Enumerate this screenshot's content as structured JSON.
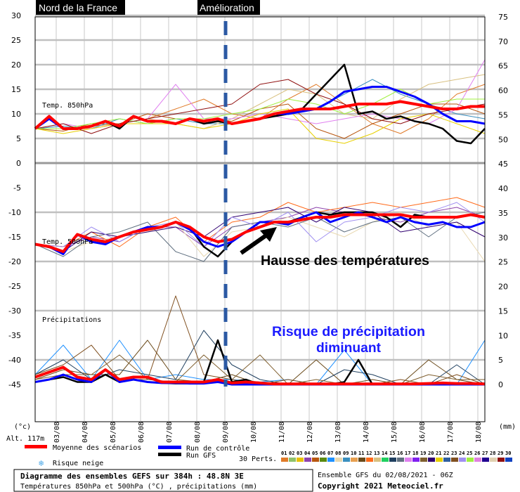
{
  "chart_data": {
    "type": "line",
    "title_tags": {
      "region": "Nord de la France",
      "event": "Amélioration"
    },
    "time_start": "02/08/2021 06Z",
    "time_step_hours": 12,
    "member_step_hours": 24,
    "x_tick_labels": [
      "03/08",
      "04/08",
      "05/08",
      "06/08",
      "07/08",
      "08/08",
      "09/08",
      "10/08",
      "11/08",
      "12/08",
      "13/08",
      "14/08",
      "15/08",
      "16/08",
      "17/08",
      "18/08"
    ],
    "left_axis": {
      "unit": "(°c)",
      "ticks": [
        30,
        25,
        20,
        15,
        10,
        5,
        0,
        -5,
        -10,
        -15,
        -20,
        -25,
        -30,
        -35,
        -40,
        -45
      ]
    },
    "right_axis": {
      "unit": "(mm)",
      "ticks": [
        75,
        70,
        65,
        60,
        55,
        50,
        45,
        40,
        35,
        30,
        25,
        20,
        15,
        10,
        5,
        0
      ]
    },
    "altitude": "Alt. 117m",
    "panels": [
      {
        "label": "Temp. 850hPa",
        "ylim": [
          0,
          30
        ],
        "mean": [
          7,
          9.5,
          7,
          7,
          7.5,
          8.5,
          7.5,
          9.5,
          8.5,
          8.5,
          8,
          9,
          8.5,
          9,
          8,
          8.5,
          9,
          10,
          10.5,
          11,
          11,
          11,
          11.5,
          12,
          12,
          12,
          12.5,
          12,
          11.5,
          11,
          11,
          11.5,
          11.5
        ],
        "control": [
          7,
          9,
          7,
          7,
          7.5,
          8.5,
          7.5,
          9.5,
          8.5,
          8.5,
          8,
          9,
          8.5,
          9,
          8,
          8.5,
          9,
          10,
          10,
          10.5,
          11,
          12.5,
          14.5,
          15,
          15.5,
          15.5,
          14.5,
          13.5,
          12,
          10,
          8.5,
          8.5,
          8
        ],
        "gfs": [
          7,
          9,
          7,
          7,
          7.5,
          8.5,
          7,
          9.5,
          8.5,
          8.5,
          8,
          9,
          8,
          8.5,
          8,
          8.5,
          9,
          9.5,
          10,
          11,
          14,
          17,
          20,
          10,
          10.5,
          9,
          9.5,
          8.5,
          8,
          7,
          4.5,
          4,
          7
        ],
        "members": [
          [
            7,
            7,
            7.5,
            8,
            9,
            11,
            13,
            10,
            9,
            13,
            16,
            12,
            8,
            6,
            9,
            14,
            16
          ],
          [
            7,
            6.5,
            8,
            8,
            10,
            9,
            9,
            8.5,
            11,
            12,
            7,
            5,
            8,
            10,
            12,
            12,
            10
          ],
          [
            7,
            7.5,
            7,
            9,
            8,
            9,
            8,
            8,
            9,
            10,
            11,
            14,
            17,
            14,
            12,
            10,
            9
          ],
          [
            7,
            7,
            7,
            8,
            9,
            8,
            7,
            9,
            12,
            15,
            14,
            10,
            9,
            13,
            16,
            17,
            18
          ],
          [
            7,
            8,
            7,
            8,
            9,
            16,
            9,
            9,
            10,
            9,
            8,
            9,
            10,
            9,
            8,
            11,
            21
          ],
          [
            7,
            6,
            7,
            8,
            8,
            8,
            7,
            8,
            10,
            11,
            5,
            4,
            6,
            9,
            10,
            8,
            6
          ],
          [
            7,
            7,
            8,
            9,
            8,
            9,
            9,
            10,
            11,
            13,
            12,
            10,
            12,
            15,
            12,
            13,
            13
          ],
          [
            7,
            8,
            6,
            8,
            9,
            10,
            11,
            12,
            16,
            17,
            14,
            12,
            9,
            8,
            10,
            11,
            12
          ]
        ]
      },
      {
        "label": "Temp. 500hPa",
        "ylim": [
          -30,
          0
        ],
        "mean": [
          -16.5,
          -17,
          -18,
          -14.5,
          -15.5,
          -16,
          -15,
          -14,
          -13.5,
          -13,
          -12,
          -13,
          -15,
          -16,
          -15.5,
          -14,
          -13,
          -12,
          -12,
          -11.5,
          -11,
          -11,
          -10.5,
          -10.5,
          -10.5,
          -10.5,
          -10.5,
          -11,
          -11,
          -11,
          -11,
          -10.5,
          -11
        ],
        "control": [
          -16.5,
          -17,
          -18.5,
          -14.5,
          -16,
          -16.5,
          -15,
          -14,
          -13,
          -13,
          -12,
          -13.5,
          -16,
          -17,
          -16,
          -14,
          -12,
          -12,
          -12.5,
          -11,
          -10,
          -12,
          -11,
          -10,
          -11,
          -12,
          -11,
          -12,
          -12.5,
          -12,
          -13,
          -13,
          -12
        ],
        "gfs": [
          -16.5,
          -17,
          -18,
          -14.5,
          -15.5,
          -16,
          -15,
          -14,
          -13.5,
          -13,
          -12,
          -13,
          -17,
          -19,
          -16,
          -14,
          -12,
          -12,
          -12,
          -11,
          -10,
          -10.5,
          -10,
          -10,
          -10,
          -11,
          -13,
          -10.5,
          -11,
          -11,
          -11,
          -10.5,
          -11
        ],
        "members": [
          [
            -16.5,
            -17,
            -15,
            -16,
            -13,
            -13,
            -17,
            -13,
            -12,
            -11,
            -9,
            -10,
            -11,
            -12,
            -10,
            -9,
            -11
          ],
          [
            -16.5,
            -18,
            -16,
            -15,
            -14,
            -12,
            -19,
            -14,
            -13,
            -11,
            -13,
            -15,
            -12,
            -10,
            -13,
            -12,
            -20
          ],
          [
            -16.5,
            -17,
            -14,
            -17,
            -13,
            -11,
            -16,
            -12,
            -11,
            -8,
            -10,
            -9,
            -8,
            -9,
            -8,
            -7,
            -9
          ],
          [
            -16.5,
            -19,
            -15,
            -14,
            -12,
            -18,
            -20,
            -13,
            -12,
            -13,
            -11,
            -14,
            -12,
            -11,
            -15,
            -11,
            -10
          ],
          [
            -16.5,
            -18,
            -14,
            -15,
            -14,
            -13,
            -15,
            -11,
            -10,
            -9,
            -12,
            -9,
            -10,
            -14,
            -13,
            -12,
            -15
          ],
          [
            -16.5,
            -17,
            -13,
            -16,
            -13,
            -12,
            -17,
            -11,
            -13,
            -10,
            -16,
            -12,
            -11,
            -9,
            -10,
            -8,
            -12
          ]
        ]
      },
      {
        "label": "Précipitations",
        "ylim": [
          0,
          15
        ],
        "unit": "mm",
        "mean": [
          1.5,
          2.5,
          3.5,
          1.5,
          1,
          3,
          1,
          1.5,
          1.5,
          0.5,
          0.5,
          0.5,
          0.5,
          1,
          0.3,
          0.5,
          0.3,
          0.1,
          0.1,
          0.1,
          0.1,
          0.1,
          0.1,
          0.1,
          0.1,
          0.1,
          0.1,
          0.1,
          0.2,
          0.3,
          0.2,
          0.2,
          0.1
        ],
        "control": [
          0.5,
          1,
          2,
          1,
          0.5,
          3,
          0.5,
          1,
          0.5,
          0.3,
          0.3,
          0.2,
          0.2,
          0.5,
          0,
          0,
          0,
          0,
          0,
          0,
          0,
          0,
          0,
          0,
          0,
          0,
          0,
          0,
          0,
          0,
          0,
          0,
          0
        ],
        "gfs": [
          0.5,
          1,
          1.5,
          0.5,
          0.5,
          2,
          0.5,
          1,
          0.5,
          0.3,
          0.2,
          0.2,
          0.5,
          9,
          0.5,
          1,
          0,
          0,
          0,
          0,
          0,
          0,
          0.5,
          5,
          0,
          0,
          0,
          0,
          0,
          0,
          0,
          0,
          0
        ],
        "members": [
          [
            2,
            8,
            1,
            9,
            1,
            2,
            1,
            1,
            0.5,
            1,
            0,
            7,
            0,
            0,
            0,
            0,
            9
          ],
          [
            1,
            3,
            2,
            2,
            9,
            1,
            0.5,
            2,
            0,
            0,
            5,
            0,
            1,
            0,
            5,
            1,
            0
          ],
          [
            2,
            5,
            1,
            3,
            2,
            1,
            11,
            4,
            1,
            0,
            0,
            3,
            2,
            0,
            0,
            4,
            0
          ],
          [
            1,
            2,
            2,
            6,
            1,
            0.5,
            6,
            1,
            6,
            0,
            1,
            0,
            0,
            0,
            2,
            1,
            1
          ],
          [
            2,
            4,
            8,
            1,
            1,
            18,
            2,
            1,
            0,
            1,
            0,
            0,
            0,
            1,
            0,
            2,
            0
          ]
        ]
      }
    ],
    "series_colors": {
      "mean": "#ff0000",
      "control": "#0000ff",
      "gfs": "#000000",
      "marker_line": "#2b59a3",
      "annotation_blue": "#1a1aff"
    },
    "annotations": {
      "temperature": "Hausse des températures",
      "precip_line1": "Risque de précipitation",
      "precip_line2": "diminuant"
    }
  },
  "legend": {
    "mean": "Moyenne des scénarios",
    "control": "Run de contrôle",
    "gfs": "Run GFS",
    "snow": "Risque neige",
    "perts_label": "30 Perts.",
    "perts": [
      "01",
      "02",
      "03",
      "04",
      "05",
      "06",
      "07",
      "08",
      "09",
      "10",
      "11",
      "12",
      "13",
      "14",
      "15",
      "16",
      "17",
      "18",
      "19",
      "20",
      "21",
      "22",
      "23",
      "24",
      "25",
      "26",
      "27",
      "28",
      "29",
      "30"
    ],
    "pert_colors": [
      "#e07b2a",
      "#8fc26a",
      "#e8c000",
      "#8e44ad",
      "#b8560f",
      "#5a8a10",
      "#1e90ff",
      "#e8d8b0",
      "#3a8fbf",
      "#e8a050",
      "#6a4a1a",
      "#ff6a1a",
      "#d8c080",
      "#20d060",
      "#204060",
      "#607080",
      "#e080f0",
      "#8020f0",
      "#806030",
      "#300070",
      "#e8d000",
      "#3060a0",
      "#805020",
      "#a090f0",
      "#a0f040",
      "#e080e0",
      "#200090",
      "#e0d0b0",
      "#901010",
      "#1040c0"
    ]
  },
  "footer": {
    "title": "Diagramme des ensembles GEFS sur 384h : 48.8N 3E",
    "subtitle": "Températures 850hPa et 500hPa (°C) , précipitations (mm)",
    "run": "Ensemble GFS du 02/08/2021 - 06Z",
    "copyright": "Copyright 2021 Meteociel.fr"
  }
}
